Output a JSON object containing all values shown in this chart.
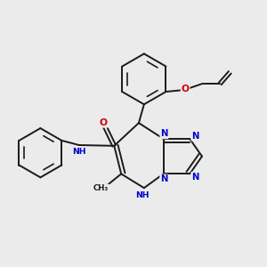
{
  "background_color": "#ebebeb",
  "bond_color": "#1a1a1a",
  "bond_width": 1.4,
  "dbo": 0.055,
  "N_color": "#0000cc",
  "O_color": "#cc0000",
  "C_color": "#1a1a1a",
  "fs": 7.2,
  "xlim": [
    -3.8,
    3.8
  ],
  "ylim": [
    -2.8,
    3.8
  ]
}
